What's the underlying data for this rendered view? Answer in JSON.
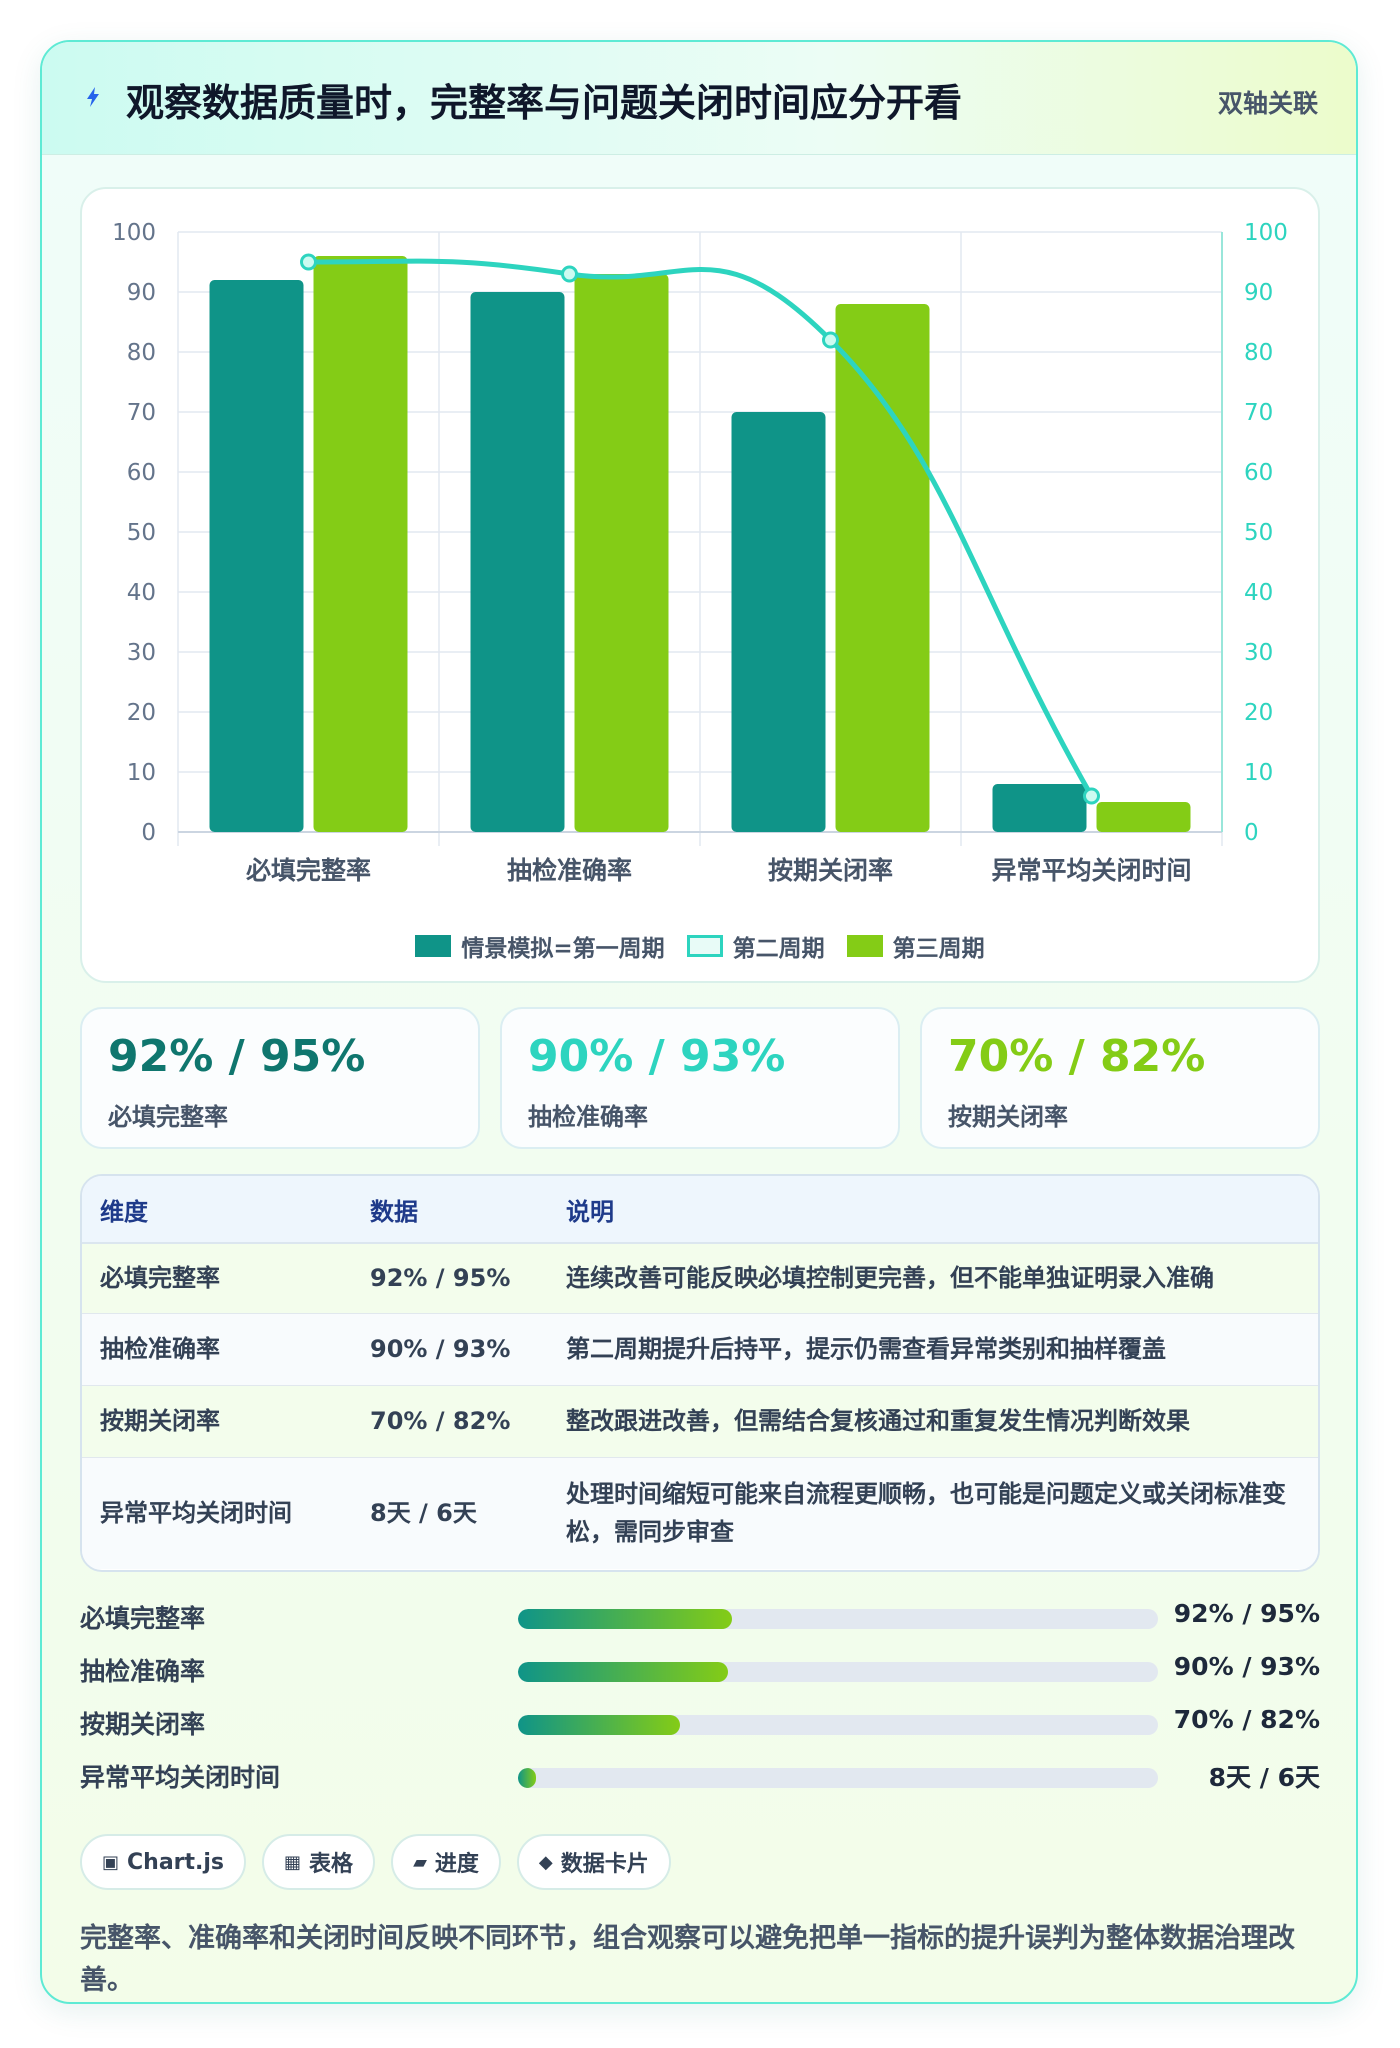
{
  "header": {
    "title": "观察数据质量时，完整率与问题关闭时间应分开看",
    "tag": "双轴关联",
    "icon": "lightning-icon"
  },
  "chart_data": {
    "type": "bar",
    "categories": [
      "必填完整率",
      "抽检准确率",
      "按期关闭率",
      "异常平均关闭时间"
    ],
    "series": [
      {
        "name": "情景模拟=第一周期",
        "type": "bar",
        "color": "#0f9488",
        "values": [
          92,
          90,
          70,
          8
        ]
      },
      {
        "name": "第二周期",
        "type": "line",
        "axis": "right",
        "color": "#2dd4bf",
        "values": [
          95,
          93,
          82,
          6
        ]
      },
      {
        "name": "第三周期",
        "type": "bar",
        "color": "#84cc16",
        "values": [
          96,
          93,
          88,
          5
        ]
      }
    ],
    "ylim": [
      0,
      100
    ],
    "y2lim": [
      0,
      100
    ],
    "yticks": [
      0,
      10,
      20,
      30,
      40,
      50,
      60,
      70,
      80,
      90,
      100
    ],
    "grid": true,
    "legend": "bottom"
  },
  "stats": [
    {
      "value": "92% / 95%",
      "label": "必填完整率",
      "color": "#0f766e"
    },
    {
      "value": "90% / 93%",
      "label": "抽检准确率",
      "color": "#2dd4bf"
    },
    {
      "value": "70% / 82%",
      "label": "按期关闭率",
      "color": "#84cc16"
    }
  ],
  "table": {
    "headers": [
      "维度",
      "数据",
      "说明"
    ],
    "rows": [
      {
        "dim": "必填完整率",
        "data": "92% / 95%",
        "note": "连续改善可能反映必填控制更完善，但不能单独证明录入准确"
      },
      {
        "dim": "抽检准确率",
        "data": "90% / 93%",
        "note": "第二周期提升后持平，提示仍需查看异常类别和抽样覆盖"
      },
      {
        "dim": "按期关闭率",
        "data": "70% / 82%",
        "note": "整改跟进改善，但需结合复核通过和重复发生情况判断效果"
      },
      {
        "dim": "异常平均关闭时间",
        "data": "8天 / 6天",
        "note": "处理时间缩短可能来自流程更顺畅，也可能是问题定义或关闭标准变松，需同步审查"
      }
    ]
  },
  "progress": [
    {
      "label": "必填完整率",
      "value": "92% / 95%",
      "fill": 0.335
    },
    {
      "label": "抽检准确率",
      "value": "90% / 93%",
      "fill": 0.328
    },
    {
      "label": "按期关闭率",
      "value": "70% / 82%",
      "fill": 0.253
    },
    {
      "label": "异常平均关闭时间",
      "value": "8天 / 6天",
      "fill": 0.028
    }
  ],
  "chips": [
    {
      "icon": "chart-icon",
      "glyph": "▣",
      "label": "Chart.js"
    },
    {
      "icon": "table-icon",
      "glyph": "▦",
      "label": "表格"
    },
    {
      "icon": "progress-icon",
      "glyph": "▰",
      "label": "进度"
    },
    {
      "icon": "card-icon",
      "glyph": "◆",
      "label": "数据卡片"
    }
  ],
  "footnote": "完整率、准确率和关闭时间反映不同环节，组合观察可以避免把单一指标的提升误判为整体数据治理改善。"
}
